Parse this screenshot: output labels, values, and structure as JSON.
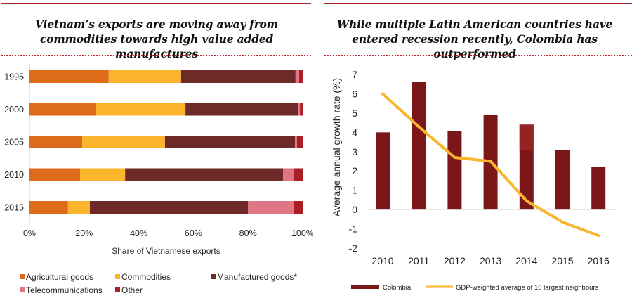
{
  "left_panel": {
    "title_line1": "Vietnam’s exports are moving away from",
    "title_line2": "commodities towards high value added manufactures"
  },
  "right_panel": {
    "title_line1": "While multiple Latin American countries have",
    "title_line2": "entered recession recently, Colombia has outperformed"
  },
  "chart_data": [
    {
      "type": "bar",
      "orientation": "horizontal",
      "stacked": true,
      "percent": true,
      "title": "Vietnam’s exports are moving away from commodities towards high value added manufactures",
      "categories": [
        "1995",
        "2000",
        "2005",
        "2010",
        "2015"
      ],
      "xlabel": "Share of Vietnamese exports",
      "ylabel": "",
      "xlim": [
        0,
        100
      ],
      "xticks": [
        "0%",
        "20%",
        "40%",
        "60%",
        "80%",
        "100%"
      ],
      "legend_position": "bottom",
      "series": [
        {
          "name": "Agricultural goods",
          "color": "#dd6b1a",
          "values": [
            29.0,
            24.2,
            19.3,
            18.5,
            14.1
          ]
        },
        {
          "name": "Commodities",
          "color": "#fbb52d",
          "values": [
            26.5,
            32.9,
            30.3,
            16.5,
            8.0
          ]
        },
        {
          "name": "Manufactured goods*",
          "color": "#6e2a26",
          "values": [
            41.9,
            41.4,
            47.6,
            57.8,
            57.9
          ]
        },
        {
          "name": "Telecommunications",
          "color": "#e07585",
          "values": [
            1.3,
            0.5,
            0.7,
            4.1,
            16.7
          ]
        },
        {
          "name": "Other",
          "color": "#a91f24",
          "values": [
            1.3,
            1.0,
            2.1,
            3.1,
            3.3
          ]
        }
      ]
    },
    {
      "type": "bar+line",
      "title": "While multiple Latin American countries have entered recession recently, Colombia has outperformed",
      "categories": [
        "2010",
        "2011",
        "2012",
        "2013",
        "2014",
        "2015",
        "2016"
      ],
      "xlabel": "",
      "ylabel": "Average annual growth rate (%)",
      "ylim": [
        -2,
        7
      ],
      "yticks": [
        "-2",
        "-1",
        "0",
        "1",
        "2",
        "3",
        "4",
        "5",
        "6",
        "7"
      ],
      "legend_position": "bottom",
      "series": [
        {
          "name": "Colombia",
          "type": "bar",
          "color": "#7b1718",
          "values": [
            4.0,
            6.6,
            4.05,
            4.9,
            4.4,
            3.1,
            2.2
          ]
        },
        {
          "name": "GDP-weighted average of 10 largest neighbours",
          "type": "line",
          "color": "#fbb52d",
          "values": [
            6.0,
            4.3,
            2.7,
            2.5,
            0.45,
            -0.65,
            -1.35
          ]
        }
      ],
      "annotations": [
        {
          "category": "2014",
          "note": "lighter shaded upper portion of Colombia bar above 3.1",
          "color": "#962324",
          "from": 3.1,
          "to": 4.4
        }
      ]
    }
  ]
}
